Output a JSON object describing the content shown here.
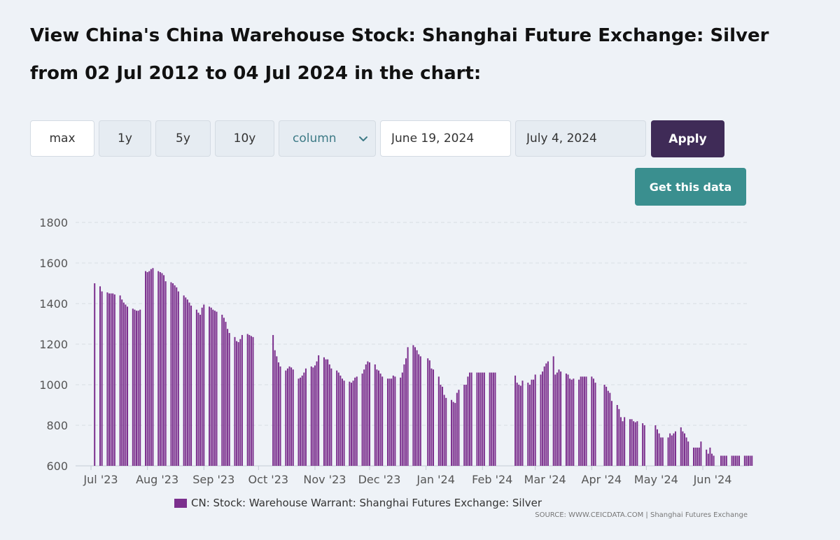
{
  "header": {
    "title": "View China's China Warehouse Stock: Shanghai Future Exchange: Silver from 02 Jul 2012 to 04 Jul 2024 in the chart:"
  },
  "controls": {
    "range_buttons": [
      "max",
      "1y",
      "5y",
      "10y"
    ],
    "chart_type": "column",
    "start_date": "June 19, 2024",
    "end_date": "July 4, 2024",
    "apply_label": "Apply",
    "get_data_label": "Get this data"
  },
  "colors": {
    "bar": "#7b2f8d",
    "apply": "#3f2b57",
    "get_data": "#3a8f8f",
    "select_text": "#3d7a86"
  },
  "legend": {
    "label": "CN: Stock: Warehouse Warrant: Shanghai Futures Exchange: Silver"
  },
  "source": {
    "text": "SOURCE: WWW.CEICDATA.COM | Shanghai Futures Exchange"
  },
  "chart_data": {
    "type": "bar",
    "ylim": [
      600,
      1800
    ],
    "yticks": [
      600,
      800,
      1000,
      1200,
      1400,
      1600,
      1800
    ],
    "xlabels": [
      "Jul '23",
      "Aug '23",
      "Sep '23",
      "Oct '23",
      "Nov '23",
      "Dec '23",
      "Jan '24",
      "Feb '24",
      "Mar '24",
      "Apr '24",
      "May '24",
      "Jun '24"
    ],
    "grid": true,
    "legend_position": "bottom",
    "series": [
      {
        "name": "CN: Stock: Warehouse Warrant: Shanghai Futures Exchange: Silver",
        "segments": [
          {
            "x": [
              "2023-07-03"
            ],
            "values": [
              1500
            ]
          },
          {
            "x": [
              "2023-07-06",
              "2023-07-07",
              "2023-07-10",
              "2023-07-11",
              "2023-07-12",
              "2023-07-13",
              "2023-07-14",
              "2023-07-17",
              "2023-07-18",
              "2023-07-19",
              "2023-07-20",
              "2023-07-21",
              "2023-07-24",
              "2023-07-25",
              "2023-07-26",
              "2023-07-27",
              "2023-07-28",
              "2023-07-31",
              "2023-08-01",
              "2023-08-02",
              "2023-08-03",
              "2023-08-04",
              "2023-08-07",
              "2023-08-08",
              "2023-08-09",
              "2023-08-10",
              "2023-08-11",
              "2023-08-14",
              "2023-08-15",
              "2023-08-16",
              "2023-08-17",
              "2023-08-18",
              "2023-08-21",
              "2023-08-22",
              "2023-08-23",
              "2023-08-24",
              "2023-08-25",
              "2023-08-28",
              "2023-08-29",
              "2023-08-30",
              "2023-08-31",
              "2023-09-01",
              "2023-09-04",
              "2023-09-05",
              "2023-09-06",
              "2023-09-07",
              "2023-09-08",
              "2023-09-11",
              "2023-09-12",
              "2023-09-13",
              "2023-09-14",
              "2023-09-15",
              "2023-09-18",
              "2023-09-19",
              "2023-09-20",
              "2023-09-21",
              "2023-09-22",
              "2023-09-25",
              "2023-09-26",
              "2023-09-27",
              "2023-09-28"
            ],
            "values": [
              1485,
              1460,
              1455,
              1450,
              1450,
              1450,
              1445,
              1440,
              1420,
              1405,
              1395,
              1385,
              1375,
              1370,
              1365,
              1365,
              1370,
              1560,
              1555,
              1560,
              1570,
              1575,
              1560,
              1555,
              1550,
              1540,
              1510,
              1505,
              1500,
              1490,
              1480,
              1460,
              1440,
              1430,
              1420,
              1405,
              1390,
              1370,
              1355,
              1345,
              1380,
              1395,
              1385,
              1380,
              1370,
              1365,
              1360,
              1345,
              1330,
              1310,
              1275,
              1255,
              1235,
              1215,
              1210,
              1225,
              1245,
              1250,
              1245,
              1240,
              1235
            ]
          },
          {
            "x": [
              "2023-10-09",
              "2023-10-10",
              "2023-10-11",
              "2023-10-12",
              "2023-10-13",
              "2023-10-16",
              "2023-10-17",
              "2023-10-18",
              "2023-10-19",
              "2023-10-20",
              "2023-10-23",
              "2023-10-24",
              "2023-10-25",
              "2023-10-26",
              "2023-10-27",
              "2023-10-30",
              "2023-10-31",
              "2023-11-01",
              "2023-11-02",
              "2023-11-03",
              "2023-11-06",
              "2023-11-07",
              "2023-11-08",
              "2023-11-09",
              "2023-11-10",
              "2023-11-13",
              "2023-11-14",
              "2023-11-15",
              "2023-11-16",
              "2023-11-17",
              "2023-11-20",
              "2023-11-21",
              "2023-11-22",
              "2023-11-23",
              "2023-11-24",
              "2023-11-27",
              "2023-11-28",
              "2023-11-29",
              "2023-11-30",
              "2023-12-01",
              "2023-12-04",
              "2023-12-05",
              "2023-12-06",
              "2023-12-07",
              "2023-12-08",
              "2023-12-11",
              "2023-12-12",
              "2023-12-13",
              "2023-12-14",
              "2023-12-15",
              "2023-12-18",
              "2023-12-19",
              "2023-12-20",
              "2023-12-21",
              "2023-12-22",
              "2023-12-25",
              "2023-12-26",
              "2023-12-27",
              "2023-12-28",
              "2023-12-29",
              "2024-01-02",
              "2024-01-03",
              "2024-01-04",
              "2024-01-05",
              "2024-01-08",
              "2024-01-09",
              "2024-01-10",
              "2024-01-11",
              "2024-01-12",
              "2024-01-15",
              "2024-01-16",
              "2024-01-17",
              "2024-01-18",
              "2024-01-19",
              "2024-01-22",
              "2024-01-23",
              "2024-01-24",
              "2024-01-25",
              "2024-01-26",
              "2024-01-29",
              "2024-01-30",
              "2024-01-31",
              "2024-02-01",
              "2024-02-02",
              "2024-02-05",
              "2024-02-06",
              "2024-02-07",
              "2024-02-08"
            ],
            "values": [
              1245,
              1170,
              1140,
              1110,
              1090,
              1070,
              1080,
              1090,
              1085,
              1075,
              1030,
              1035,
              1045,
              1060,
              1080,
              1090,
              1085,
              1095,
              1115,
              1145,
              1135,
              1125,
              1125,
              1100,
              1080,
              1070,
              1060,
              1045,
              1030,
              1020,
              1015,
              1010,
              1020,
              1035,
              1040,
              1055,
              1075,
              1100,
              1115,
              1110,
              1100,
              1075,
              1070,
              1055,
              1040,
              1030,
              1030,
              1030,
              1045,
              1040,
              1035,
              1060,
              1100,
              1130,
              1185,
              1195,
              1185,
              1170,
              1150,
              1140,
              1130,
              1120,
              1080,
              1075,
              1040,
              1000,
              990,
              950,
              935,
              925,
              915,
              910,
              960,
              975,
              1000,
              1000,
              1040,
              1060,
              1060,
              1060,
              1060,
              1060,
              1060,
              1060,
              1060,
              1060,
              1060,
              1060
            ]
          },
          {
            "x": [
              "2024-02-19",
              "2024-02-20",
              "2024-02-21",
              "2024-02-22",
              "2024-02-23",
              "2024-02-26",
              "2024-02-27",
              "2024-02-28",
              "2024-02-29",
              "2024-03-01",
              "2024-03-04",
              "2024-03-05",
              "2024-03-06",
              "2024-03-07",
              "2024-03-08",
              "2024-03-11",
              "2024-03-12",
              "2024-03-13",
              "2024-03-14",
              "2024-03-15",
              "2024-03-18",
              "2024-03-19",
              "2024-03-20",
              "2024-03-21",
              "2024-03-22",
              "2024-03-25",
              "2024-03-26",
              "2024-03-27",
              "2024-03-28",
              "2024-03-29",
              "2024-04-01",
              "2024-04-02",
              "2024-04-03",
              "2024-04-08",
              "2024-04-09",
              "2024-04-10",
              "2024-04-11",
              "2024-04-12",
              "2024-04-15",
              "2024-04-16",
              "2024-04-17",
              "2024-04-18",
              "2024-04-19",
              "2024-04-22",
              "2024-04-23",
              "2024-04-24",
              "2024-04-25",
              "2024-04-26",
              "2024-04-29",
              "2024-04-30",
              "2024-05-06",
              "2024-05-07",
              "2024-05-08",
              "2024-05-09",
              "2024-05-10",
              "2024-05-13",
              "2024-05-14",
              "2024-05-15",
              "2024-05-16",
              "2024-05-17",
              "2024-05-20",
              "2024-05-21",
              "2024-05-22",
              "2024-05-23",
              "2024-05-24",
              "2024-05-27",
              "2024-05-28",
              "2024-05-29",
              "2024-05-30",
              "2024-05-31",
              "2024-06-03",
              "2024-06-04",
              "2024-06-05",
              "2024-06-06",
              "2024-06-07",
              "2024-06-11",
              "2024-06-12",
              "2024-06-13",
              "2024-06-14",
              "2024-06-17",
              "2024-06-18",
              "2024-06-19",
              "2024-06-20",
              "2024-06-21",
              "2024-06-24",
              "2024-06-25",
              "2024-06-26",
              "2024-06-27",
              "2024-06-28"
            ],
            "values": [
              1045,
              1010,
              1000,
              995,
              1020,
              1010,
              1000,
              1025,
              1025,
              1050,
              1050,
              1065,
              1090,
              1105,
              1115,
              1140,
              1050,
              1060,
              1075,
              1065,
              1055,
              1050,
              1030,
              1025,
              1030,
              1025,
              1040,
              1040,
              1040,
              1040,
              1040,
              1030,
              1010,
              1000,
              990,
              970,
              960,
              920,
              900,
              880,
              840,
              820,
              840,
              830,
              830,
              820,
              815,
              820,
              810,
              800,
              800,
              780,
              760,
              740,
              740,
              740,
              760,
              750,
              760,
              770,
              790,
              770,
              760,
              740,
              720,
              690,
              690,
              690,
              690,
              720,
              680,
              660,
              690,
              660,
              650,
              650,
              650,
              650,
              650,
              650,
              650,
              650,
              650,
              650,
              650,
              650,
              650,
              650,
              650
            ]
          }
        ]
      }
    ]
  }
}
